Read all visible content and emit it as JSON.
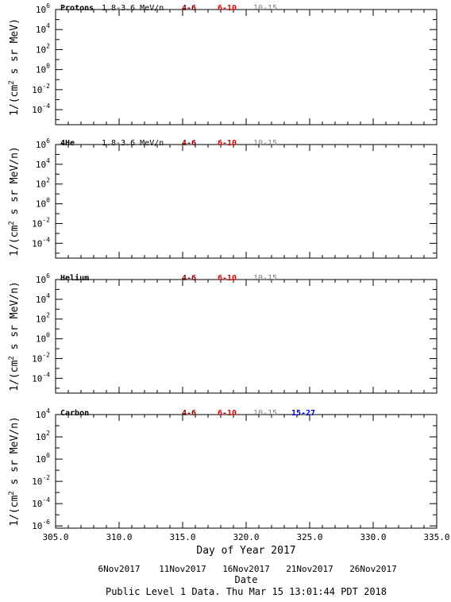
{
  "chart_data": {
    "type": "line",
    "x_axis": {
      "label": "Day of Year 2017",
      "range": [
        305.0,
        335.0
      ],
      "ticks": [
        305.0,
        310.0,
        315.0,
        320.0,
        325.0,
        330.0,
        335.0
      ],
      "tick_labels": [
        "305.0",
        "310.0",
        "315.0",
        "320.0",
        "325.0",
        "330.0",
        "335.0"
      ]
    },
    "date_axis": {
      "label": "Date",
      "days": [
        310,
        315,
        320,
        325,
        330
      ],
      "labels": [
        "6Nov2017",
        "11Nov2017",
        "16Nov2017",
        "21Nov2017",
        "26Nov2017"
      ]
    },
    "footer": "Public Level 1 Data. Thu Mar 15 13:01:44 PDT 2018",
    "panels": [
      {
        "species": "Protons",
        "energy": "1.8-3.6 MeV/n",
        "ylabel_pre": "1/(cm",
        "ylabel_post": " s sr MeV)",
        "ylabel_sup": "2",
        "y_log_range": [
          -5.5,
          6
        ],
        "y_major_exponents": [
          6,
          4,
          2,
          0,
          -2,
          -4
        ],
        "channels": [
          {
            "name": "4-6",
            "color": "#8b0000",
            "values": []
          },
          {
            "name": "6-10",
            "color": "#dd0000",
            "values": []
          },
          {
            "name": "10-15",
            "color": "#808080",
            "values": []
          }
        ]
      },
      {
        "species": "4He",
        "energy": "1.8-3.6 MeV/n",
        "ylabel_pre": "1/(cm",
        "ylabel_post": " s sr MeV/n)",
        "ylabel_sup": "2",
        "y_log_range": [
          -5.5,
          6
        ],
        "y_major_exponents": [
          6,
          4,
          2,
          0,
          -2,
          -4
        ],
        "channels": [
          {
            "name": "4-6",
            "color": "#8b0000",
            "values": []
          },
          {
            "name": "6-10",
            "color": "#dd0000",
            "values": []
          },
          {
            "name": "10-15",
            "color": "#808080",
            "values": []
          }
        ]
      },
      {
        "species": "Helium",
        "energy": "",
        "ylabel_pre": "1/(cm",
        "ylabel_post": " s sr MeV/n)",
        "ylabel_sup": "2",
        "y_log_range": [
          -5.5,
          6
        ],
        "y_major_exponents": [
          6,
          4,
          2,
          0,
          -2,
          -4
        ],
        "channels": [
          {
            "name": "4-6",
            "color": "#8b0000",
            "values": []
          },
          {
            "name": "6-10",
            "color": "#dd0000",
            "values": []
          },
          {
            "name": "10-15",
            "color": "#808080",
            "values": []
          }
        ]
      },
      {
        "species": "Carbon",
        "energy": "",
        "ylabel_pre": "1/(cm",
        "ylabel_post": " s sr MeV/n)",
        "ylabel_sup": "2",
        "y_log_range": [
          -6.2,
          4
        ],
        "y_major_exponents": [
          4,
          2,
          0,
          -2,
          -4,
          -6
        ],
        "channels": [
          {
            "name": "4-6",
            "color": "#8b0000",
            "values": []
          },
          {
            "name": "6-10",
            "color": "#dd0000",
            "values": []
          },
          {
            "name": "10-15",
            "color": "#808080",
            "values": []
          },
          {
            "name": "15-27",
            "color": "#0000cc",
            "values": []
          }
        ]
      }
    ]
  }
}
